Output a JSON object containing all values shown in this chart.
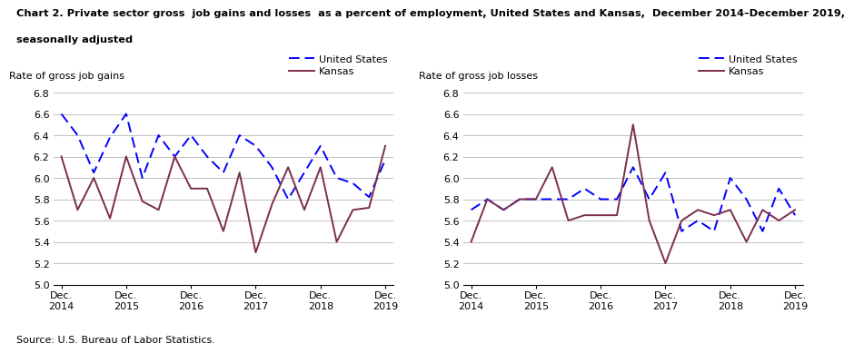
{
  "title_line1": "Chart 2. Private sector gross  job gains and losses  as a percent of employment, United States and Kansas,  December 2014–December 2019,",
  "title_line2": "seasonally adjusted",
  "gains_ylabel": "Rate of gross job gains",
  "losses_ylabel": "Rate of gross job losses",
  "source": "Source: U.S. Bureau of Labor Statistics.",
  "ylim": [
    5.0,
    6.9
  ],
  "yticks": [
    5.0,
    5.2,
    5.4,
    5.6,
    5.8,
    6.0,
    6.2,
    6.4,
    6.6,
    6.8
  ],
  "us_color": "#0000FF",
  "ks_color": "#7B2D4E",
  "us_label": "United States",
  "ks_label": "Kansas",
  "x_tick_labels": [
    "Dec.\n2014",
    "Dec.\n2015",
    "Dec.\n2016",
    "Dec.\n2017",
    "Dec.\n2018",
    "Dec.\n2019"
  ],
  "x_tick_positions": [
    0,
    4,
    8,
    12,
    16,
    20
  ],
  "gains_us": [
    6.6,
    6.4,
    6.05,
    6.38,
    6.6,
    6.0,
    6.4,
    6.2,
    6.4,
    6.2,
    6.05,
    6.4,
    6.3,
    6.1,
    5.8,
    6.05,
    6.3,
    6.0,
    5.95,
    5.82,
    6.17
  ],
  "gains_ks": [
    6.2,
    5.7,
    6.0,
    5.62,
    6.2,
    5.78,
    5.7,
    6.2,
    5.9,
    5.9,
    5.5,
    6.05,
    5.3,
    5.75,
    6.1,
    5.7,
    6.1,
    5.4,
    5.7,
    5.72,
    6.3
  ],
  "losses_us": [
    5.7,
    5.8,
    5.7,
    5.8,
    5.8,
    5.8,
    5.8,
    5.9,
    5.8,
    5.8,
    6.1,
    5.8,
    6.05,
    5.5,
    5.6,
    5.5,
    6.0,
    5.8,
    5.5,
    5.9,
    5.65
  ],
  "losses_ks": [
    5.4,
    5.8,
    5.7,
    5.8,
    5.8,
    6.1,
    5.6,
    5.65,
    5.65,
    5.65,
    6.5,
    5.6,
    5.2,
    5.6,
    5.7,
    5.65,
    5.7,
    5.4,
    5.7,
    5.6,
    5.7
  ]
}
